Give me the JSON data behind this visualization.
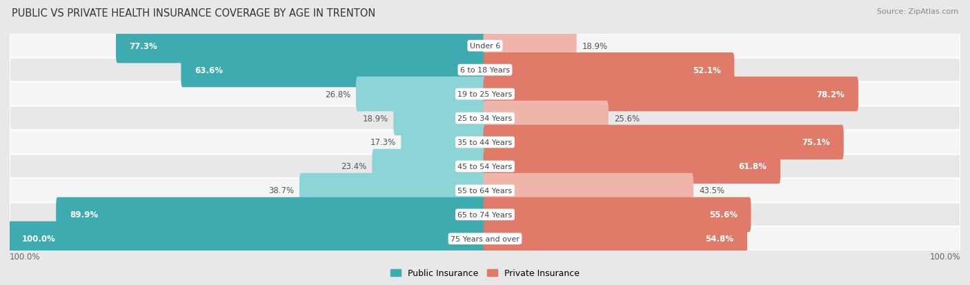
{
  "title": "PUBLIC VS PRIVATE HEALTH INSURANCE COVERAGE BY AGE IN TRENTON",
  "source": "Source: ZipAtlas.com",
  "categories": [
    "Under 6",
    "6 to 18 Years",
    "19 to 25 Years",
    "25 to 34 Years",
    "35 to 44 Years",
    "45 to 54 Years",
    "55 to 64 Years",
    "65 to 74 Years",
    "75 Years and over"
  ],
  "public_values": [
    77.3,
    63.6,
    26.8,
    18.9,
    17.3,
    23.4,
    38.7,
    89.9,
    100.0
  ],
  "private_values": [
    18.9,
    52.1,
    78.2,
    25.6,
    75.1,
    61.8,
    43.5,
    55.6,
    54.8
  ],
  "public_color_strong": "#3dabb0",
  "public_color_light": "#8dd4d6",
  "private_color_strong": "#e07b6a",
  "private_color_light": "#f0b5aa",
  "bg_color": "#e8e8e8",
  "row_bg_light": "#f5f5f5",
  "row_bg_dark": "#e8e8e8",
  "bar_height": 0.72,
  "max_value": 100.0,
  "title_fontsize": 10.5,
  "label_fontsize": 8.5,
  "category_fontsize": 8.0,
  "legend_fontsize": 9,
  "source_fontsize": 8,
  "strong_threshold": 45
}
